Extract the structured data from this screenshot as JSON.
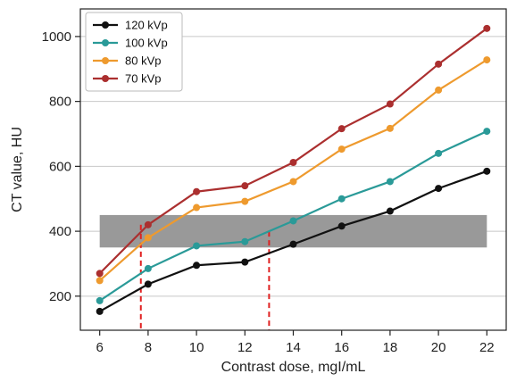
{
  "chart_data": {
    "type": "line",
    "xlabel": "Contrast dose, mgI/mL",
    "ylabel": "CT value, HU",
    "x": [
      6,
      8,
      10,
      12,
      14,
      16,
      18,
      20,
      22
    ],
    "xlim": [
      5.2,
      22.8
    ],
    "ylim": [
      95,
      1085
    ],
    "xticks": [
      6,
      8,
      10,
      12,
      14,
      16,
      18,
      20,
      22
    ],
    "yticks": [
      200,
      400,
      600,
      800,
      1000
    ],
    "grid": "horizontal",
    "legend_position": "top-left",
    "series": [
      {
        "name": "120 kVp",
        "color": "#111111",
        "values": [
          153,
          237,
          295,
          305,
          360,
          416,
          462,
          532,
          585
        ]
      },
      {
        "name": "100 kVp",
        "color": "#2a9a98",
        "values": [
          186,
          285,
          355,
          368,
          432,
          500,
          553,
          640,
          708
        ]
      },
      {
        "name": "80 kVp",
        "color": "#ee9a2e",
        "values": [
          248,
          380,
          473,
          492,
          553,
          653,
          717,
          835,
          928
        ]
      },
      {
        "name": "70 kVp",
        "color": "#ab2f2f",
        "values": [
          270,
          420,
          522,
          540,
          612,
          716,
          792,
          915,
          1025
        ]
      }
    ],
    "band": {
      "x_range": [
        6,
        22
      ],
      "y_range": [
        350,
        450
      ],
      "color": "#999999"
    },
    "reference_lines": [
      {
        "x": 7.7,
        "y_top": 420,
        "color": "#e02020"
      },
      {
        "x": 13.0,
        "y_top": 400,
        "color": "#e02020"
      }
    ]
  }
}
